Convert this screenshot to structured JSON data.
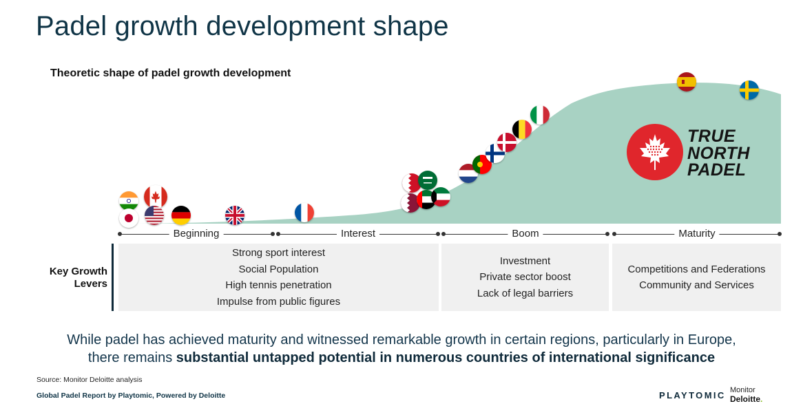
{
  "title": "Padel growth development shape",
  "subtitle": "Theoretic shape of padel growth development",
  "stages": [
    "Beginning",
    "Interest",
    "Boom",
    "Maturity"
  ],
  "levers": {
    "label_line1": "Key Growth",
    "label_line2": "Levers",
    "groups": [
      [
        "Strong sport interest",
        "Social Population",
        "High tennis penetration",
        "Impulse from public figures"
      ],
      [
        "Investment",
        "Private sector boost",
        "Lack of legal barriers"
      ],
      [
        "Competitions and Federations",
        "Community and Services"
      ]
    ]
  },
  "brand": {
    "line1": "TRUE",
    "line2": "NORTH",
    "line3": "PADEL",
    "color": "#e0262c"
  },
  "conclusion": {
    "line1": "While padel has achieved maturity and witnessed remarkable growth in certain regions, particularly in Europe,",
    "line2_prefix": "there remains ",
    "line2_bold": "substantial untapped potential in numerous countries of international significance"
  },
  "source": "Source: Monitor Deloitte analysis",
  "footer": "Global Padel Report by Playtomic,  Powered by Deloitte",
  "logos": {
    "playtomic": "PLAYTOMIC",
    "monitor": "Monitor",
    "deloitte": "Deloitte",
    "deloitte_dot": "."
  },
  "colors": {
    "curve_fill": "#a8d2c3",
    "title": "#0f3446",
    "accent_green": "#86bc25"
  },
  "flags": [
    "India",
    "Japan",
    "Canada",
    "USA",
    "Germany",
    "UK",
    "France",
    "Bahrain",
    "Qatar",
    "Saudi Arabia",
    "UAE",
    "Kuwait",
    "Netherlands",
    "Portugal",
    "Finland",
    "Denmark",
    "Belgium",
    "Italy",
    "Spain",
    "Sweden"
  ]
}
